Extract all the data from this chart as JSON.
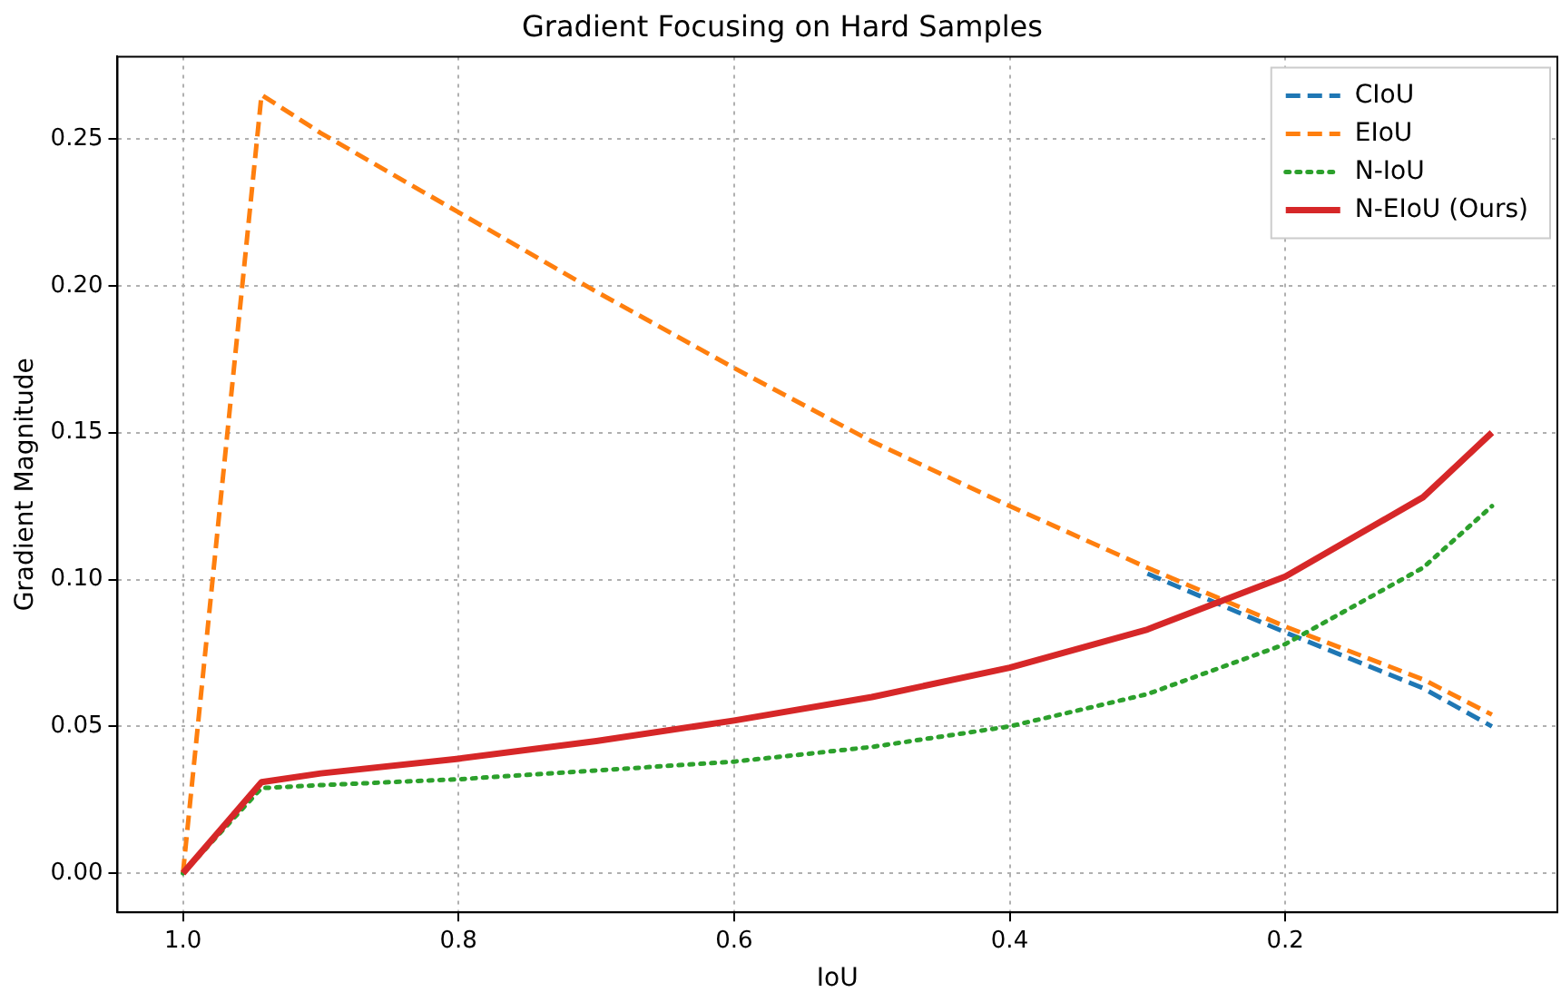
{
  "chart_data": {
    "type": "line",
    "title": "Gradient Focusing on Hard Samples",
    "xlabel": "IoU",
    "ylabel": "Gradient Magnitude",
    "xlim": [
      1.0475,
      0.0025
    ],
    "ylim": [
      -0.0133,
      0.278
    ],
    "xticks": [
      {
        "value": 1,
        "label": "1.0"
      },
      {
        "value": 0.8,
        "label": "0.8"
      },
      {
        "value": 0.6,
        "label": "0.6"
      },
      {
        "value": 0.4,
        "label": "0.4"
      },
      {
        "value": 0.2,
        "label": "0.2"
      }
    ],
    "yticks": [
      {
        "value": 0,
        "label": "0.00"
      },
      {
        "value": 0.05,
        "label": "0.05"
      },
      {
        "value": 0.1,
        "label": "0.10"
      },
      {
        "value": 0.15,
        "label": "0.15"
      },
      {
        "value": 0.2,
        "label": "0.20"
      },
      {
        "value": 0.25,
        "label": "0.25"
      }
    ],
    "x": [
      1.0,
      0.943,
      0.9,
      0.8,
      0.7,
      0.6,
      0.5,
      0.4,
      0.3,
      0.2,
      0.1,
      0.05
    ],
    "grid": true,
    "legend": "top right",
    "marker": "none",
    "series": [
      {
        "name": "CIoU",
        "color": "#1f77b4",
        "line_style": "dashed",
        "values": [
          null,
          null,
          null,
          null,
          null,
          null,
          null,
          null,
          0.102,
          0.082,
          0.063,
          0.05
        ]
      },
      {
        "name": "EIoU",
        "color": "#ff7f0e",
        "line_style": "dashed",
        "values": [
          0,
          0.265,
          0.252,
          0.225,
          0.198,
          0.172,
          0.147,
          0.125,
          0.104,
          0.084,
          0.066,
          0.054
        ]
      },
      {
        "name": "N-IoU",
        "color": "#2ca02c",
        "line_style": "dotted",
        "values": [
          0,
          0.029,
          0.03,
          0.032,
          0.035,
          0.038,
          0.043,
          0.05,
          0.061,
          0.078,
          0.104,
          0.125
        ]
      },
      {
        "name": "N-EIoU (Ours)",
        "color": "#d62728",
        "line_style": "solid",
        "values": [
          0,
          0.031,
          0.034,
          0.039,
          0.045,
          0.052,
          0.06,
          0.07,
          0.083,
          0.101,
          0.128,
          0.15
        ]
      }
    ]
  }
}
